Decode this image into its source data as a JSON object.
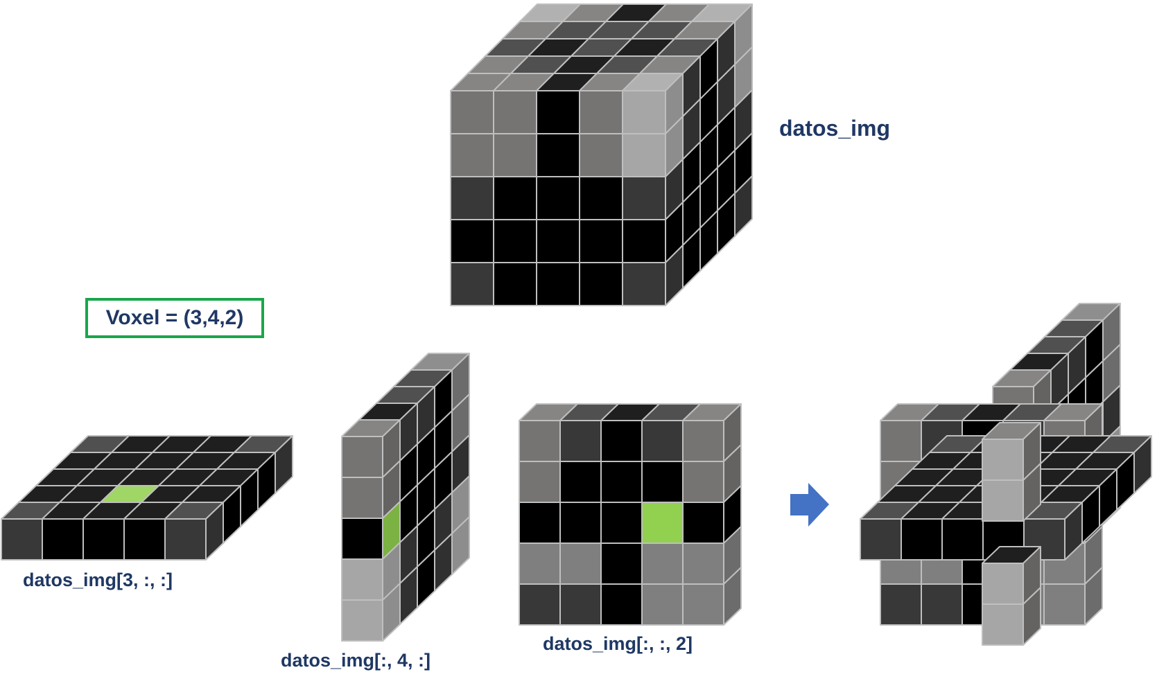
{
  "labels": {
    "volume": "datos_img",
    "slice_x": "datos_img[3, :, :]",
    "slice_y": "datos_img[:, 4, :]",
    "slice_z": "datos_img[:, :, 2]"
  },
  "voxel_label": "Voxel = (3,4,2)",
  "colors": {
    "black": "#000000",
    "dark_gray": "#383838",
    "mid_gray": "#767473",
    "gray": "#7f7f7f",
    "light_gray": "#a6a6a6",
    "highlight_green": "#92d050",
    "highlight_green_dark": "#70ad47",
    "label_navy": "#1f3864",
    "box_green": "#1aa64b",
    "arrow_blue": "#4472c4",
    "edge": "#bfbfbf"
  }
}
